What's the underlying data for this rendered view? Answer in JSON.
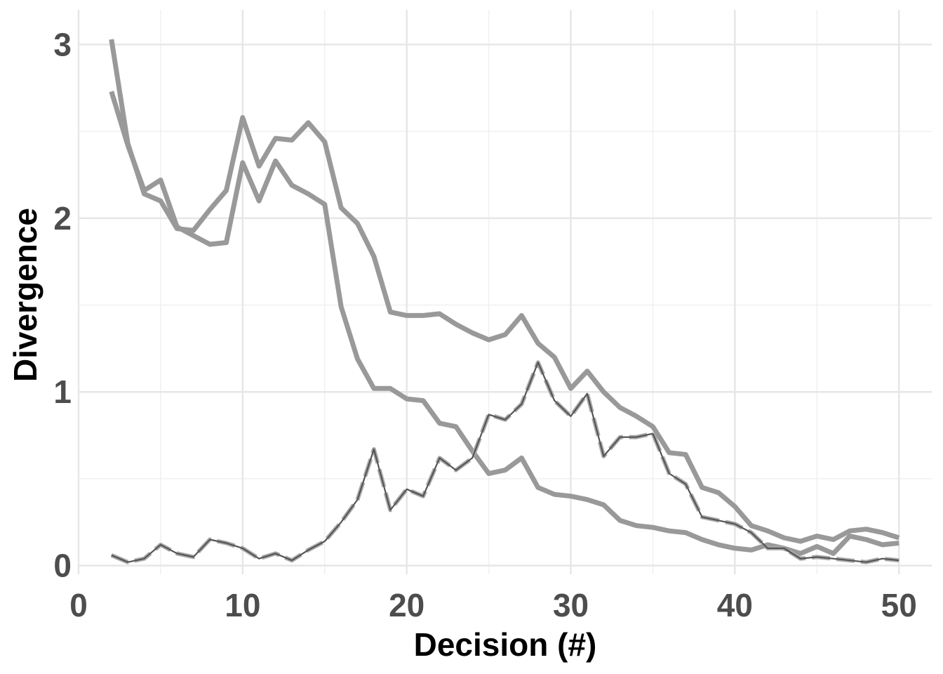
{
  "chart_data": {
    "type": "line",
    "title": "",
    "xlabel": "Decision (#)",
    "ylabel": "Divergence",
    "xlim": [
      0,
      52
    ],
    "ylim": [
      -0.05,
      3.2
    ],
    "x_ticks": [
      0,
      10,
      20,
      30,
      40,
      50
    ],
    "y_ticks": [
      0,
      1,
      2,
      3
    ],
    "grid": true,
    "legend": "none",
    "colors": {
      "thick": "#999999",
      "thin": "#555555",
      "dash": "#aaaaaa"
    },
    "series": [
      {
        "style": "thick",
        "x": [
          2,
          3,
          4,
          5,
          6,
          7,
          8,
          9,
          10,
          11,
          12,
          13,
          14,
          15,
          16,
          17,
          18,
          19,
          20,
          21,
          22,
          23,
          24,
          25,
          26,
          27,
          28,
          29,
          30,
          31,
          32,
          33,
          34,
          35,
          36,
          37,
          38,
          39,
          40,
          41,
          42,
          43,
          44,
          45,
          46,
          47,
          48,
          49,
          50
        ],
        "y": [
          3.03,
          2.43,
          2.14,
          2.1,
          1.94,
          1.93,
          2.05,
          2.16,
          2.58,
          2.3,
          2.46,
          2.45,
          2.55,
          2.44,
          2.06,
          1.97,
          1.78,
          1.46,
          1.44,
          1.44,
          1.45,
          1.39,
          1.34,
          1.3,
          1.33,
          1.44,
          1.28,
          1.2,
          1.02,
          1.12,
          1.0,
          0.91,
          0.86,
          0.8,
          0.65,
          0.64,
          0.45,
          0.42,
          0.34,
          0.23,
          0.2,
          0.16,
          0.14,
          0.17,
          0.15,
          0.2,
          0.21,
          0.19,
          0.16
        ]
      },
      {
        "style": "thick",
        "x": [
          2,
          3,
          4,
          5,
          6,
          7,
          8,
          9,
          10,
          11,
          12,
          13,
          14,
          15,
          16,
          17,
          18,
          19,
          20,
          21,
          22,
          23,
          24,
          25,
          26,
          27,
          28,
          29,
          30,
          31,
          32,
          33,
          34,
          35,
          36,
          37,
          38,
          39,
          40,
          41,
          42,
          43,
          44,
          45,
          46,
          47,
          48,
          49,
          50
        ],
        "y": [
          2.73,
          2.42,
          2.16,
          2.22,
          1.95,
          1.9,
          1.85,
          1.86,
          2.32,
          2.1,
          2.33,
          2.19,
          2.14,
          2.08,
          1.49,
          1.19,
          1.02,
          1.02,
          0.96,
          0.95,
          0.82,
          0.8,
          0.66,
          0.53,
          0.55,
          0.62,
          0.45,
          0.41,
          0.4,
          0.38,
          0.35,
          0.26,
          0.23,
          0.22,
          0.2,
          0.19,
          0.15,
          0.12,
          0.1,
          0.09,
          0.12,
          0.1,
          0.07,
          0.11,
          0.07,
          0.17,
          0.15,
          0.12,
          0.13
        ]
      },
      {
        "style": "dash",
        "x": [
          2,
          3,
          4,
          5,
          6,
          7,
          8,
          9,
          10,
          11,
          12,
          13,
          14,
          15,
          16,
          17,
          18,
          19,
          20,
          21,
          22,
          23,
          24,
          25,
          26,
          27,
          28,
          29,
          30,
          31,
          32,
          33,
          34,
          35,
          36,
          37,
          38,
          39,
          40,
          41,
          42,
          43,
          44,
          45,
          46,
          47,
          48,
          49,
          50
        ],
        "y": [
          0.06,
          0.02,
          0.04,
          0.12,
          0.07,
          0.05,
          0.15,
          0.13,
          0.1,
          0.04,
          0.07,
          0.03,
          0.09,
          0.14,
          0.25,
          0.38,
          0.67,
          0.32,
          0.44,
          0.4,
          0.62,
          0.55,
          0.62,
          0.87,
          0.84,
          0.93,
          1.17,
          0.95,
          0.86,
          0.99,
          0.63,
          0.74,
          0.74,
          0.76,
          0.53,
          0.47,
          0.28,
          0.26,
          0.24,
          0.19,
          0.1,
          0.1,
          0.04,
          0.05,
          0.04,
          0.03,
          0.02,
          0.04,
          0.03
        ]
      },
      {
        "style": "thin",
        "x": [
          2,
          3,
          4,
          5,
          6,
          7,
          8,
          9,
          10,
          11,
          12,
          13,
          14,
          15,
          16,
          17,
          18,
          19,
          20,
          21,
          22,
          23,
          24,
          25,
          26,
          27,
          28,
          29,
          30,
          31,
          32,
          33,
          34,
          35,
          36,
          37,
          38,
          39,
          40,
          41,
          42,
          43,
          44,
          45,
          46,
          47,
          48,
          49,
          50
        ],
        "y": [
          0.06,
          0.02,
          0.04,
          0.12,
          0.07,
          0.05,
          0.15,
          0.13,
          0.1,
          0.04,
          0.07,
          0.03,
          0.09,
          0.14,
          0.25,
          0.38,
          0.67,
          0.32,
          0.44,
          0.4,
          0.62,
          0.55,
          0.62,
          0.87,
          0.84,
          0.93,
          1.17,
          0.95,
          0.86,
          0.99,
          0.63,
          0.74,
          0.74,
          0.76,
          0.53,
          0.47,
          0.28,
          0.26,
          0.24,
          0.19,
          0.1,
          0.1,
          0.04,
          0.05,
          0.04,
          0.03,
          0.02,
          0.04,
          0.03
        ]
      }
    ]
  }
}
